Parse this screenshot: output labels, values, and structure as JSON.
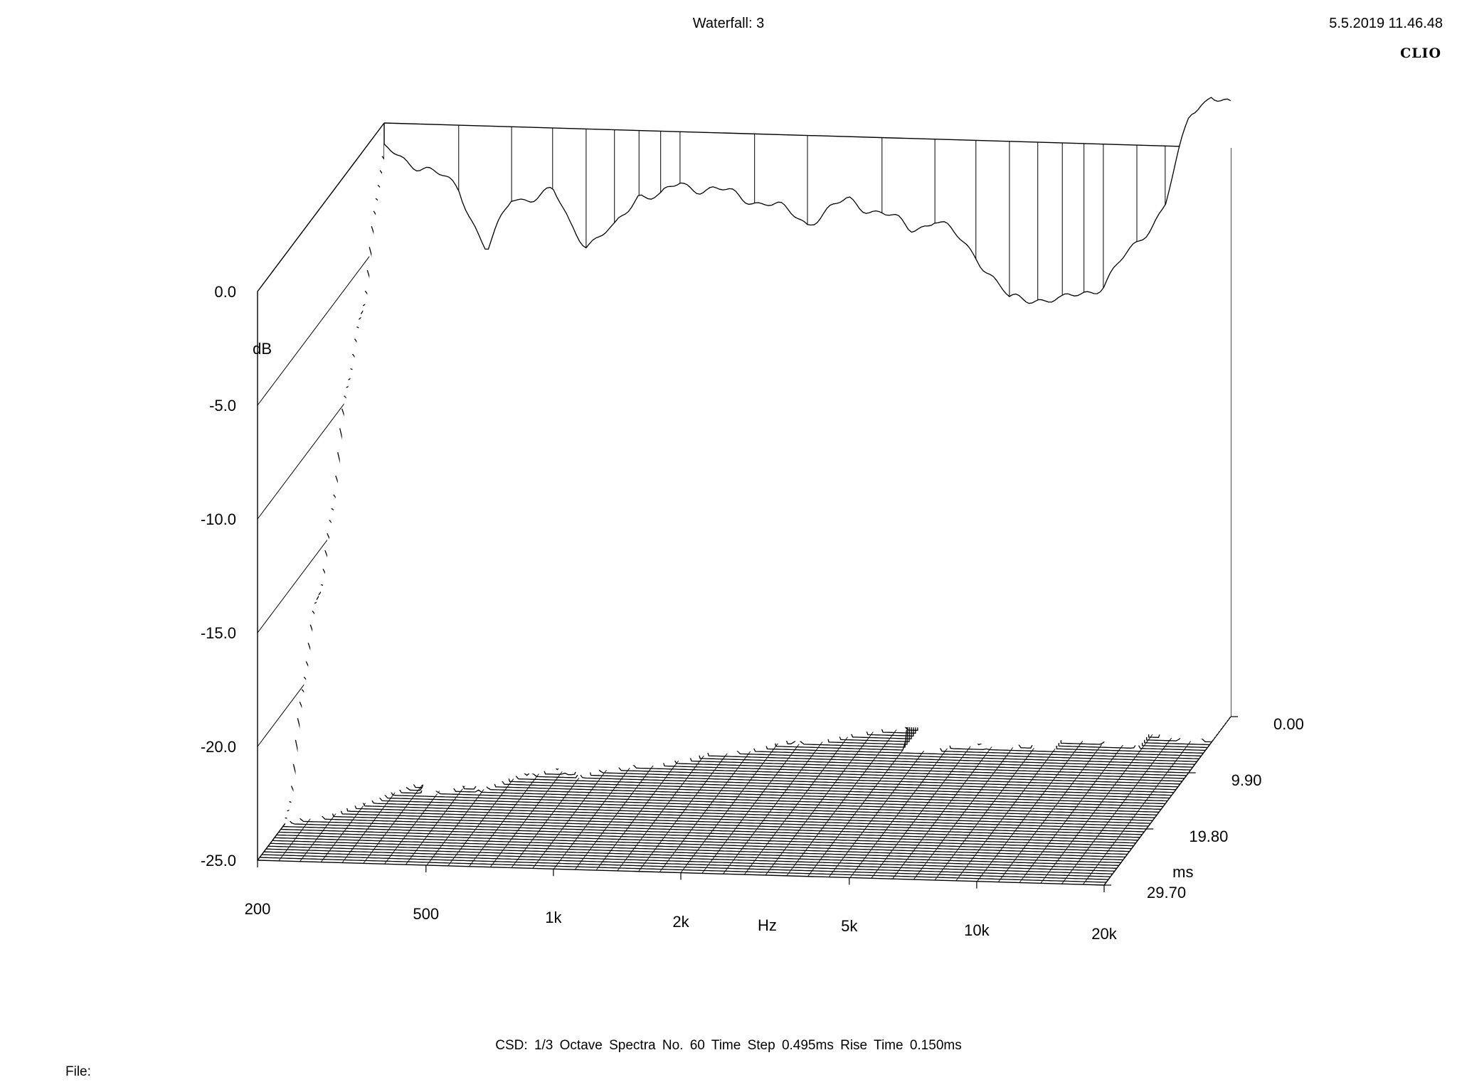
{
  "header": {
    "title": "Waterfall: 3",
    "datetime": "5.5.2019 11.46.48",
    "brand": "CLIO"
  },
  "footer": {
    "settings": "CSD:   1/3 Octave   Spectra No. 60   Time Step 0.495ms   Rise Time 0.150ms",
    "file_label": "File:"
  },
  "chart_data": {
    "type": "waterfall",
    "title": "Waterfall: 3",
    "ylabel": "dB",
    "xlabel": "Hz",
    "tlabel": "ms",
    "x_scale": "log",
    "xlim": [
      200,
      20000
    ],
    "ylim": [
      -25,
      0
    ],
    "tlim": [
      0,
      29.7
    ],
    "y_ticks": [
      {
        "value": 0,
        "label": "0.0"
      },
      {
        "value": -5,
        "label": "-5.0"
      },
      {
        "value": -10,
        "label": "-10.0"
      },
      {
        "value": -15,
        "label": "-15.0"
      },
      {
        "value": -20,
        "label": "-20.0"
      },
      {
        "value": -25,
        "label": "-25.0"
      }
    ],
    "x_ticks": [
      {
        "value": 200,
        "label": "200"
      },
      {
        "value": 500,
        "label": "500"
      },
      {
        "value": 1000,
        "label": "1k"
      },
      {
        "value": 2000,
        "label": "2k"
      },
      {
        "value": 5000,
        "label": "5k"
      },
      {
        "value": 10000,
        "label": "10k"
      },
      {
        "value": 20000,
        "label": "20k"
      }
    ],
    "t_ticks": [
      {
        "value": 0,
        "label": "0.00"
      },
      {
        "value": 9.9,
        "label": "9.90"
      },
      {
        "value": 19.8,
        "label": "19.80"
      },
      {
        "value": 29.7,
        "label": "29.70"
      }
    ],
    "spectra_count": 60,
    "time_step_ms": 0.495,
    "rise_time_ms": 0.15,
    "initial_spectrum": {
      "freq_hz": [
        200,
        250,
        300,
        350,
        400,
        450,
        500,
        550,
        600,
        700,
        800,
        900,
        1000,
        1200,
        1400,
        1600,
        2000,
        2500,
        3000,
        3500,
        4000,
        5000,
        6000,
        7000,
        8000,
        9000,
        10000,
        12000,
        14000,
        16000,
        18000,
        20000
      ],
      "db": [
        -1.2,
        -1.9,
        -2.8,
        -5.5,
        -3.2,
        -3.0,
        -2.8,
        -4.2,
        -5.0,
        -4.4,
        -2.7,
        -2.9,
        -2.3,
        -2.5,
        -2.8,
        -3.0,
        -3.8,
        -2.8,
        -3.3,
        -4.0,
        -3.5,
        -5.0,
        -7.0,
        -6.8,
        -7.0,
        -6.5,
        -6.2,
        -4.3,
        -2.6,
        1.4,
        2.4,
        1.8
      ]
    },
    "late_spectrum": {
      "time_ms": 29.7,
      "freq_hz": [
        200,
        300,
        400,
        500,
        600,
        700,
        800,
        1000,
        1200,
        1500,
        2000,
        2500,
        3000,
        4000,
        5000,
        6000,
        7000,
        8000,
        10000,
        12000,
        14000,
        16000,
        20000
      ],
      "db": [
        -25,
        -25,
        -25,
        -25,
        -25,
        -25,
        -25,
        -25,
        -25,
        -25,
        -25,
        -25,
        -25,
        -25,
        -25,
        -25,
        -25,
        -25,
        -25,
        -25,
        -25,
        -25,
        -25
      ]
    }
  }
}
